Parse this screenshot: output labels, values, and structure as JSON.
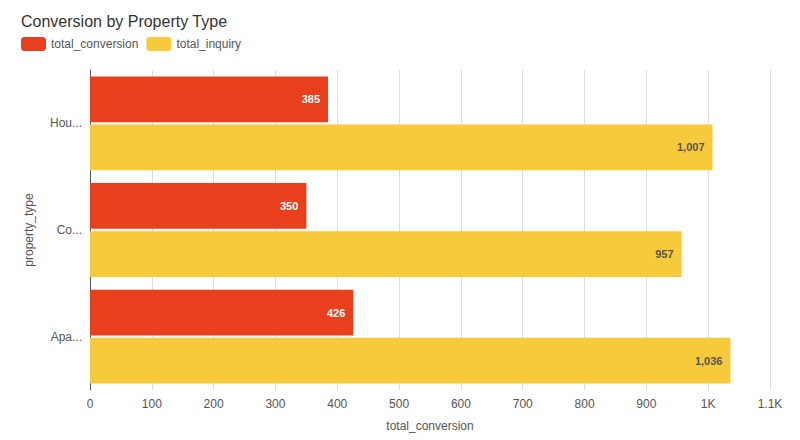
{
  "chart_data": {
    "type": "bar",
    "title": "Conversion by Property Type",
    "orientation": "horizontal",
    "categories": [
      "Hou...",
      "Co...",
      "Apa..."
    ],
    "series": [
      {
        "name": "total_conversion",
        "color": "#E8401C",
        "values": [
          385,
          350,
          426
        ]
      },
      {
        "name": "total_inquiry",
        "color": "#F7CA3B",
        "values": [
          1007,
          957,
          1036
        ],
        "value_labels": [
          "1,007",
          "957",
          "1,036"
        ]
      }
    ],
    "xlabel": "total_conversion",
    "ylabel": "property_type",
    "xlim": [
      0,
      1100
    ],
    "xticks": [
      0,
      100,
      200,
      300,
      400,
      500,
      600,
      700,
      800,
      900,
      {
        "value": 1000,
        "label": "1K"
      },
      {
        "value": 1100,
        "label": "1.1K"
      }
    ],
    "grid": true,
    "legend": "upper left",
    "data_labels": true
  }
}
